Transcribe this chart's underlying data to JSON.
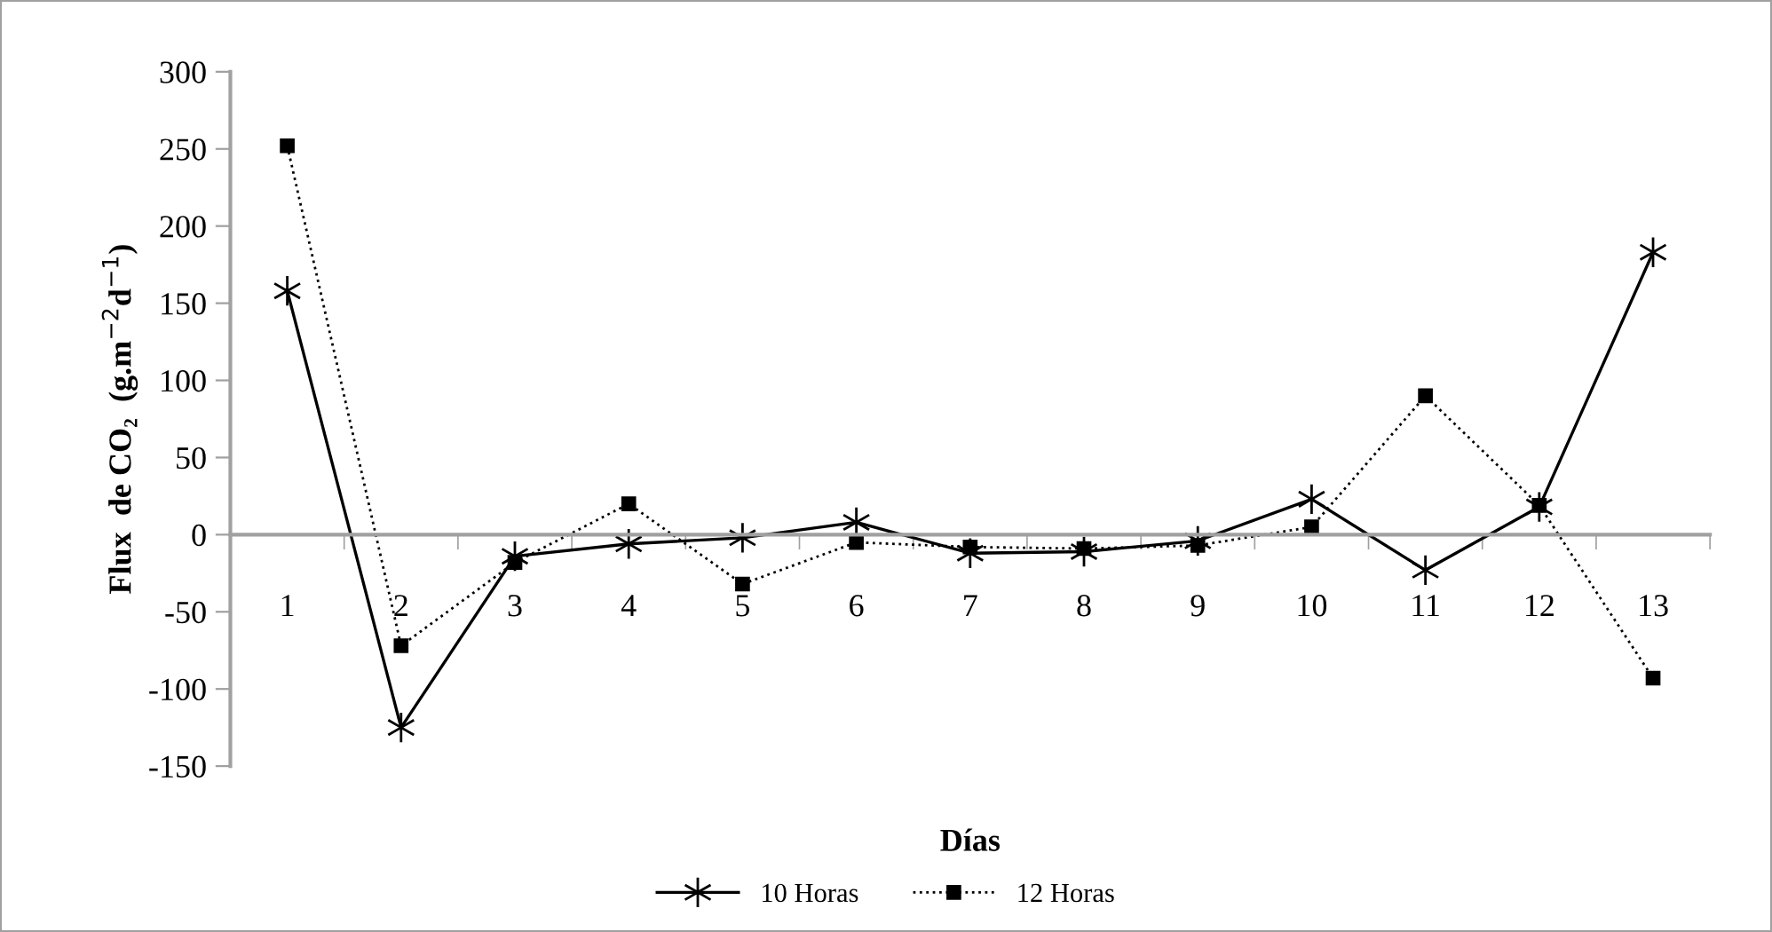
{
  "chart_data": {
    "type": "line",
    "xlabel": "Días",
    "ylabel": "Flux  de CO₂  (g.m$^{−2}$d$^{−1}$)",
    "categories": [
      "1",
      "2",
      "3",
      "4",
      "5",
      "6",
      "7",
      "8",
      "9",
      "10",
      "11",
      "12",
      "13"
    ],
    "series": [
      {
        "name": "10 Horas",
        "color": "#000000",
        "marker": "cross",
        "line_style": "solid",
        "values": [
          158,
          -125,
          -14,
          -6,
          -2,
          8,
          -12,
          -11,
          -4,
          23,
          -23,
          18,
          183
        ]
      },
      {
        "name": "12 Horas",
        "color": "#000000",
        "marker": "square",
        "line_style": "dotted",
        "values": [
          252,
          -72,
          -18,
          20,
          -32,
          -5,
          -8,
          -9,
          -7,
          5,
          90,
          19,
          -93
        ]
      }
    ],
    "ylim": [
      -150,
      300
    ],
    "yticks": [
      -150,
      -100,
      -50,
      0,
      50,
      100,
      150,
      200,
      250,
      300
    ],
    "grid": false,
    "legend": "bottom"
  }
}
